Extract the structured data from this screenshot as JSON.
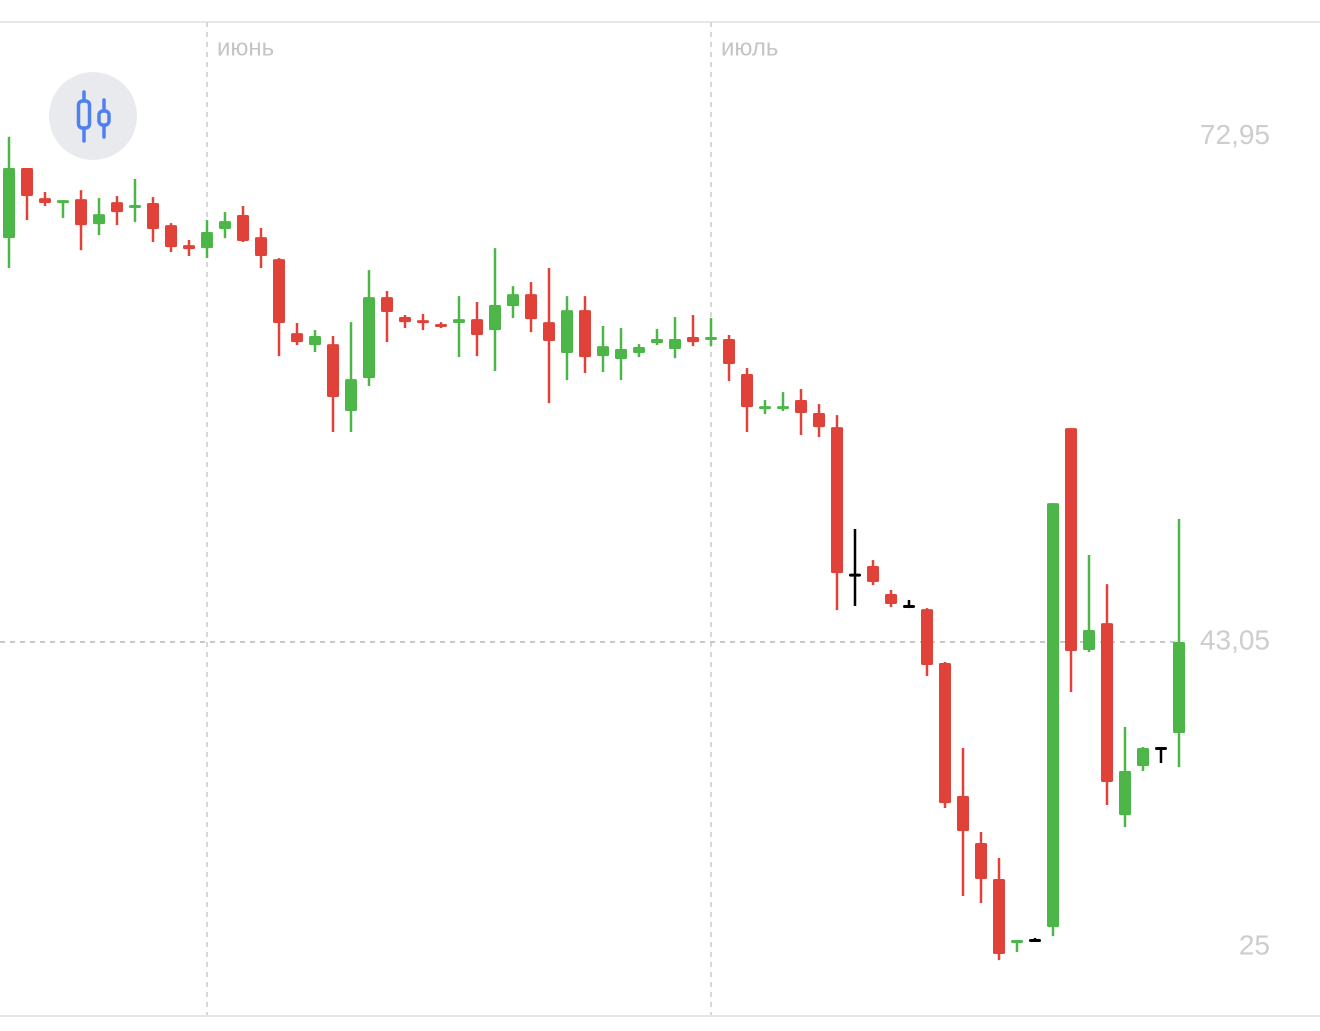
{
  "chart_data": {
    "type": "candlestick",
    "categories": [
      null,
      null,
      null,
      null,
      null,
      null,
      null,
      null,
      null,
      null,
      null,
      "июнь",
      null,
      null,
      null,
      null,
      null,
      null,
      null,
      null,
      null,
      null,
      null,
      null,
      null,
      null,
      null,
      null,
      null,
      null,
      null,
      null,
      null,
      null,
      null,
      null,
      null,
      null,
      null,
      "июль",
      null,
      null,
      null,
      null,
      null,
      null,
      null,
      null,
      null,
      null,
      null,
      null,
      null,
      null,
      null,
      null,
      null,
      null,
      null,
      null,
      null,
      null,
      null,
      null,
      null,
      null
    ],
    "open": [
      66.95,
      71.1,
      69.32,
      69.03,
      69.26,
      67.78,
      69.08,
      68.73,
      69.03,
      67.72,
      66.54,
      66.36,
      67.49,
      68.32,
      67.01,
      65.71,
      61.33,
      60.62,
      60.68,
      56.72,
      58.67,
      63.46,
      62.28,
      62.1,
      61.87,
      61.93,
      62.16,
      61.51,
      62.93,
      63.64,
      61.98,
      60.15,
      62.69,
      59.97,
      59.8,
      60.15,
      60.74,
      60.39,
      61.1,
      60.92,
      60.98,
      58.91,
      56.84,
      56.9,
      57.37,
      56.6,
      55.77,
      47.1,
      47.55,
      45.89,
      45.24,
      45.0,
      41.81,
      33.94,
      31.16,
      29.03,
      25.24,
      25.48,
      26.19,
      55.71,
      42.58,
      44.17,
      32.81,
      35.71,
      36.84,
      37.67
    ],
    "high": [
      72.95,
      71.1,
      69.68,
      69.2,
      69.79,
      69.32,
      69.44,
      70.45,
      69.38,
      67.84,
      66.84,
      68.02,
      68.49,
      68.85,
      67.55,
      65.77,
      61.93,
      61.51,
      61.16,
      61.98,
      65.06,
      63.82,
      62.4,
      62.46,
      61.98,
      63.52,
      63.17,
      66.36,
      64.11,
      64.35,
      65.18,
      63.52,
      63.52,
      61.75,
      61.63,
      60.68,
      61.57,
      62.28,
      62.4,
      62.22,
      61.22,
      59.26,
      57.37,
      57.84,
      58.02,
      57.13,
      56.48,
      49.74,
      47.9,
      46.13,
      45.54,
      45.06,
      41.87,
      36.78,
      31.81,
      30.27,
      25.42,
      25.54,
      51.27,
      55.71,
      48.2,
      46.48,
      38.02,
      36.84,
      36.84,
      50.33
    ],
    "low": [
      65.18,
      68.02,
      68.85,
      68.14,
      66.24,
      67.13,
      67.72,
      67.9,
      66.72,
      66.13,
      65.89,
      65.77,
      66.95,
      66.72,
      65.18,
      59.97,
      60.62,
      60.21,
      55.48,
      55.48,
      58.2,
      60.8,
      61.63,
      61.51,
      61.63,
      59.91,
      59.97,
      59.09,
      62.22,
      61.39,
      57.19,
      58.55,
      58.97,
      59.03,
      58.55,
      59.91,
      60.62,
      59.85,
      60.56,
      60.56,
      58.49,
      55.48,
      56.54,
      56.72,
      55.3,
      55.18,
      44.94,
      45.18,
      46.42,
      45.12,
      45.06,
      41.04,
      33.23,
      28.02,
      27.61,
      24.23,
      24.71,
      25.36,
      25.65,
      40.09,
      42.46,
      33.41,
      32.1,
      35.42,
      35.89,
      35.65
    ],
    "close": [
      71.1,
      69.44,
      69.03,
      69.2,
      67.72,
      68.37,
      68.49,
      68.91,
      67.49,
      66.42,
      66.3,
      67.31,
      67.96,
      66.78,
      65.89,
      61.93,
      60.8,
      61.16,
      57.55,
      58.61,
      63.46,
      62.58,
      61.98,
      61.93,
      61.75,
      62.16,
      61.22,
      62.99,
      63.64,
      62.16,
      60.86,
      62.69,
      59.91,
      60.56,
      60.39,
      60.51,
      60.98,
      60.98,
      60.8,
      61.1,
      59.5,
      56.95,
      57.01,
      57.01,
      56.6,
      55.77,
      47.13,
      47.1,
      46.6,
      45.3,
      45.24,
      41.69,
      33.52,
      31.87,
      29.03,
      24.59,
      25.42,
      25.48,
      51.27,
      42.52,
      43.76,
      34.77,
      35.42,
      36.78,
      36.84,
      43.05
    ],
    "up_color": "#4cb748",
    "down_color": "#e0423a",
    "flat_color": "#000000",
    "ylim": [
      20.98,
      79.74
    ],
    "yticks": [
      {
        "value": 72.95,
        "label": "72,95"
      },
      {
        "value": 43.05,
        "label": "43,05"
      },
      25
    ]
  }
}
